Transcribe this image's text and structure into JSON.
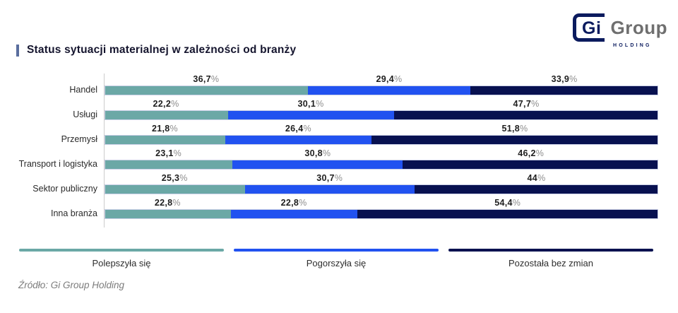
{
  "logo": {
    "gi": "Gi",
    "group": "Group",
    "holding": "HOLDING",
    "navy": "#0B1B5E",
    "gray": "#6F6F6F"
  },
  "title": "Status sytuacji materialnej w zależności od branży",
  "source": "Źródło: Gi Group Holding",
  "colors": {
    "improved": "#6BA8A6",
    "worsened": "#2152F0",
    "unchanged": "#081150",
    "title_accent": "#5A6E9E",
    "axis": "#CCCCCC"
  },
  "chart_data": {
    "type": "bar",
    "orientation": "horizontal-stacked",
    "unit": "%",
    "title": "Status sytuacji materialnej w zależności od branży",
    "xlim": [
      0,
      100
    ],
    "grid": false,
    "legend_position": "bottom",
    "categories": [
      "Handel",
      "Usługi",
      "Przemysł",
      "Transport i logistyka",
      "Sektor publiczny",
      "Inna branża"
    ],
    "series": [
      {
        "name": "Polepszyła się",
        "key": "improved",
        "color": "#6BA8A6",
        "values": [
          36.7,
          22.2,
          21.8,
          23.1,
          25.3,
          22.8
        ],
        "labels": [
          "36,7%",
          "22,2%",
          "21,8%",
          "23,1%",
          "25,3%",
          "22,8%"
        ]
      },
      {
        "name": "Pogorszyła się",
        "key": "worsened",
        "color": "#2152F0",
        "values": [
          29.4,
          30.1,
          26.4,
          30.8,
          30.7,
          22.8
        ],
        "labels": [
          "29,4%",
          "30,1%",
          "26,4%",
          "30,8%",
          "30,7%",
          "22,8%"
        ]
      },
      {
        "name": "Pozostała bez zmian",
        "key": "unchanged",
        "color": "#081150",
        "values": [
          33.9,
          47.7,
          51.8,
          46.2,
          44,
          54.4
        ],
        "labels": [
          "33,9%",
          "47,7%",
          "51,8%",
          "46,2%",
          "44%",
          "54,4%"
        ]
      }
    ]
  }
}
